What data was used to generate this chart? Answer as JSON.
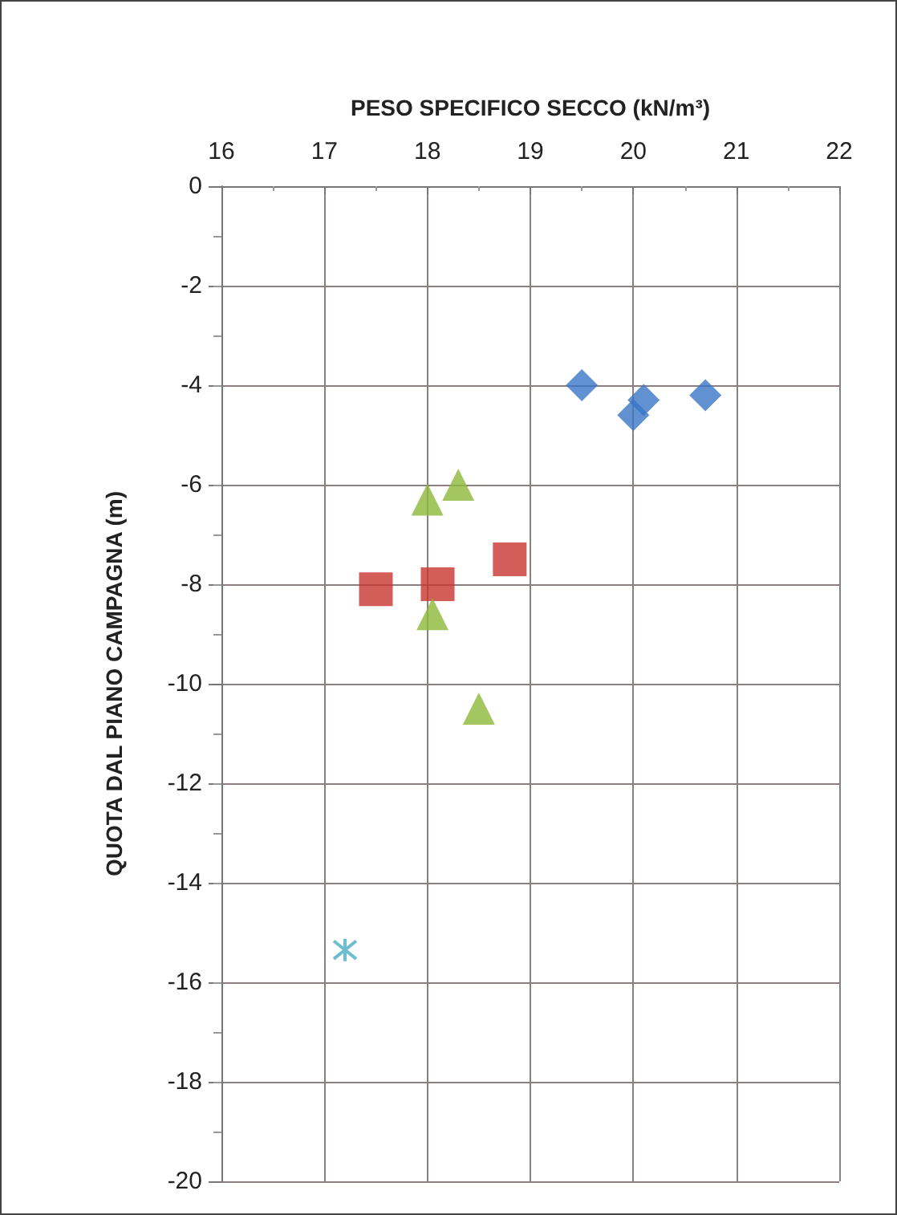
{
  "chart_data": {
    "type": "scatter",
    "xlabel": "PESO SPECIFICO SECCO (kN/m³)",
    "ylabel": "QUOTA DAL PIANO CAMPAGNA (m)",
    "series": [
      {
        "color": "#3a75c4",
        "marker": "diamond",
        "x": [
          19.5,
          20.0,
          20.1,
          20.7
        ],
        "values": [
          -4.0,
          -4.6,
          -4.3,
          -4.2
        ]
      },
      {
        "color": "#c8342f",
        "marker": "square",
        "x": [
          17.5,
          18.1,
          18.8
        ],
        "values": [
          -8.1,
          -8.0,
          -7.5
        ]
      },
      {
        "color": "#8db83a",
        "marker": "triangle",
        "x": [
          18.0,
          18.3,
          18.05,
          18.5
        ],
        "values": [
          -6.3,
          -6.0,
          -8.6,
          -10.5
        ]
      },
      {
        "color": "#4bacc6",
        "marker": "cross",
        "x": [
          17.2
        ],
        "values": [
          -15.35
        ]
      }
    ],
    "xlim": [
      16,
      22
    ],
    "xticks": [
      16,
      17,
      18,
      19,
      20,
      21,
      22
    ],
    "ylim": [
      -20,
      0
    ],
    "yticks": [
      -20,
      -18,
      -16,
      -14,
      -12,
      -10,
      -8,
      -6,
      -4,
      -2,
      0
    ],
    "grid": true
  }
}
